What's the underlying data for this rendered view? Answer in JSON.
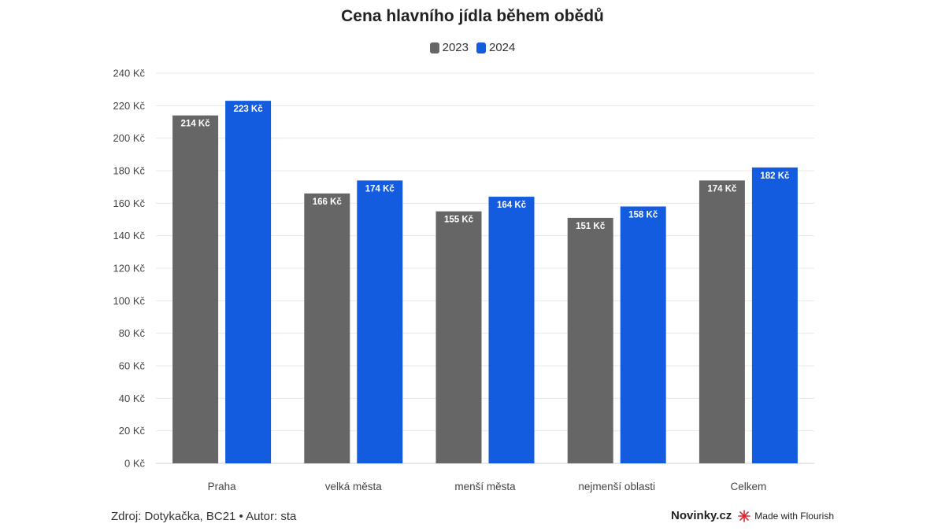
{
  "colors": {
    "s2023": "#666666",
    "s2024": "#135ce0",
    "grid": "#e8e8e8",
    "flourish": "#e0283c"
  },
  "chart_data": {
    "type": "bar",
    "title": "Cena hlavního jídla během obědů",
    "xlabel": "",
    "ylabel": "",
    "ylim": [
      0,
      240
    ],
    "yticks": [
      {
        "value": 0,
        "label": "0 Kč"
      },
      {
        "value": 20,
        "label": "20 Kč"
      },
      {
        "value": 40,
        "label": "40 Kč"
      },
      {
        "value": 60,
        "label": "60 Kč"
      },
      {
        "value": 80,
        "label": "80 Kč"
      },
      {
        "value": 100,
        "label": "100 Kč"
      },
      {
        "value": 120,
        "label": "120 Kč"
      },
      {
        "value": 140,
        "label": "140 Kč"
      },
      {
        "value": 160,
        "label": "160 Kč"
      },
      {
        "value": 180,
        "label": "180 Kč"
      },
      {
        "value": 200,
        "label": "200 Kč"
      },
      {
        "value": 220,
        "label": "220 Kč"
      },
      {
        "value": 240,
        "label": "240 Kč"
      }
    ],
    "grid": true,
    "legend_position": "top-center",
    "categories": [
      "Praha",
      "velká města",
      "menší města",
      "nejmenší oblasti",
      "Celkem"
    ],
    "series": [
      {
        "name": "2023",
        "values": [
          214,
          166,
          155,
          151,
          174
        ],
        "labels": [
          "214 Kč",
          "166 Kč",
          "155 Kč",
          "151 Kč",
          "174 Kč"
        ]
      },
      {
        "name": "2024",
        "values": [
          223,
          174,
          164,
          158,
          182
        ],
        "labels": [
          "223 Kč",
          "174 Kč",
          "164 Kč",
          "158 Kč",
          "182 Kč"
        ]
      }
    ]
  },
  "footer": {
    "source": "Zdroj: Dotykačka, BC21 • Autor: sta",
    "brand": "Novinky.cz",
    "made_with": "Made with Flourish"
  }
}
